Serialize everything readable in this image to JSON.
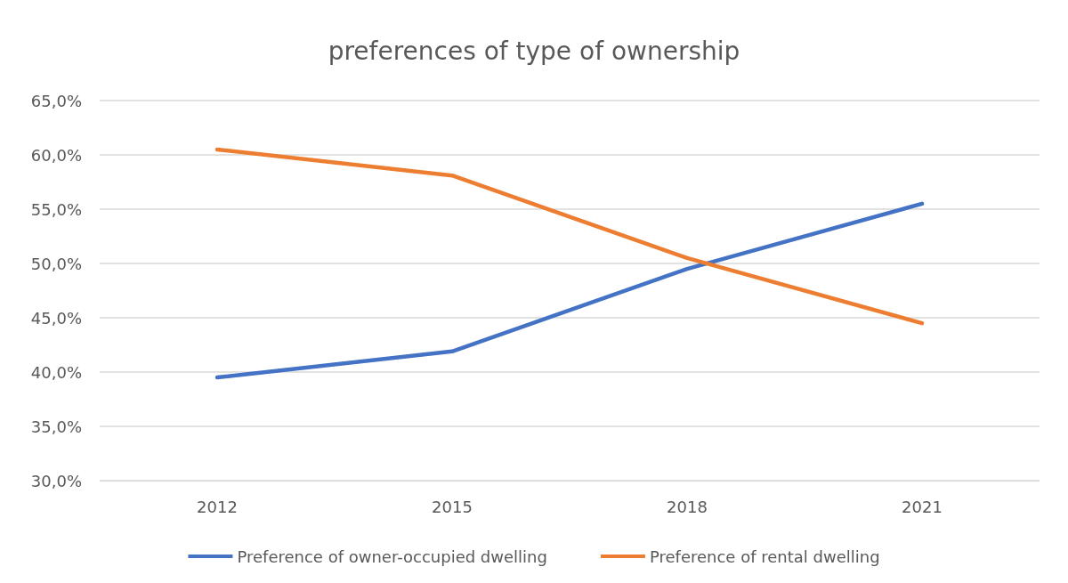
{
  "chart_data": {
    "type": "line",
    "title": "preferences of type of ownership",
    "categories": [
      "2012",
      "2015",
      "2018",
      "2021"
    ],
    "series": [
      {
        "name": "Preference of owner-occupied dwelling",
        "color": "#4472c4",
        "values": [
          39.5,
          41.9,
          49.5,
          55.5
        ]
      },
      {
        "name": "Preference of rental dwelling",
        "color": "#ed7d31",
        "values": [
          60.5,
          58.1,
          50.5,
          44.5
        ]
      }
    ],
    "ylim": [
      30,
      65
    ],
    "yticks": [
      {
        "value": 30,
        "label": "30,0%"
      },
      {
        "value": 35,
        "label": "35,0%"
      },
      {
        "value": 40,
        "label": "40,0%"
      },
      {
        "value": 45,
        "label": "45,0%"
      },
      {
        "value": 50,
        "label": "50,0%"
      },
      {
        "value": 55,
        "label": "55,0%"
      },
      {
        "value": 60,
        "label": "60,0%"
      },
      {
        "value": 65,
        "label": "65,0%"
      }
    ],
    "grid": "y",
    "legend": "bottom",
    "marker": "none",
    "line_style": "solid"
  }
}
